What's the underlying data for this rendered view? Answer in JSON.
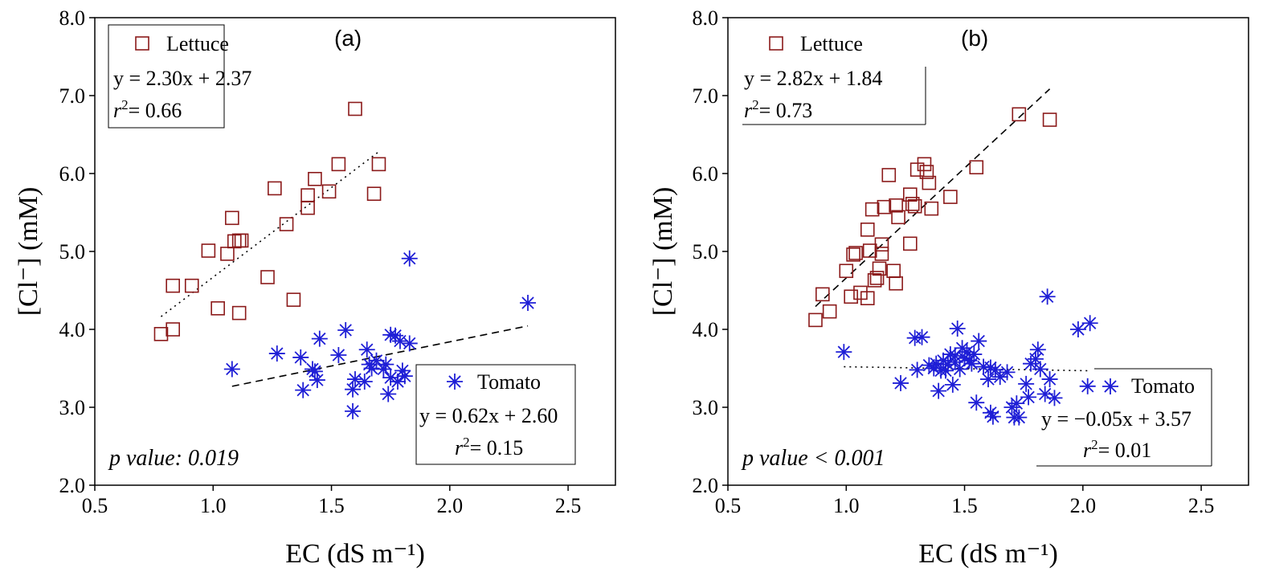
{
  "colors": {
    "lettuce": "#8b1a1a",
    "tomato": "#1f1fd6",
    "axis": "#000000"
  },
  "chart_data": [
    {
      "type": "scatter",
      "panel_label": "(a)",
      "xlabel": "EC (dS m⁻¹)",
      "ylabel": "[Cl⁻] (mM)",
      "xlim": [
        0.5,
        2.7
      ],
      "ylim": [
        2.0,
        8.0
      ],
      "x_ticks": [
        0.5,
        1.0,
        1.5,
        2.0,
        2.5
      ],
      "x_tick_labels": [
        "0.5",
        "1.0",
        "1.5",
        "2.0",
        "2.5"
      ],
      "y_ticks": [
        2.0,
        3.0,
        4.0,
        5.0,
        6.0,
        7.0,
        8.0
      ],
      "y_tick_labels": [
        "2.0",
        "3.0",
        "4.0",
        "5.0",
        "6.0",
        "7.0",
        "8.0"
      ],
      "p_value": "p value: 0.019",
      "series": [
        {
          "name": "Lettuce",
          "marker": "square",
          "equation": "y = 2.30x + 2.37",
          "r2_value": "= 0.66",
          "fit": {
            "slope": 2.3,
            "intercept": 2.37,
            "x": [
              0.78,
              1.7
            ],
            "style": "dotted"
          },
          "points": [
            [
              0.78,
              3.94
            ],
            [
              0.83,
              4.0
            ],
            [
              0.83,
              4.56
            ],
            [
              0.91,
              4.56
            ],
            [
              0.98,
              5.01
            ],
            [
              1.02,
              4.27
            ],
            [
              1.06,
              4.97
            ],
            [
              1.08,
              5.43
            ],
            [
              1.09,
              5.13
            ],
            [
              1.11,
              4.21
            ],
            [
              1.11,
              5.14
            ],
            [
              1.12,
              5.14
            ],
            [
              1.23,
              4.67
            ],
            [
              1.26,
              5.81
            ],
            [
              1.31,
              5.35
            ],
            [
              1.34,
              4.38
            ],
            [
              1.4,
              5.56
            ],
            [
              1.4,
              5.72
            ],
            [
              1.43,
              5.93
            ],
            [
              1.49,
              5.77
            ],
            [
              1.53,
              6.12
            ],
            [
              1.6,
              6.83
            ],
            [
              1.68,
              5.74
            ],
            [
              1.7,
              6.12
            ]
          ]
        },
        {
          "name": "Tomato",
          "marker": "asterisk",
          "equation": "y = 0.62x + 2.60",
          "r2_value": "= 0.15",
          "fit": {
            "slope": 0.62,
            "intercept": 2.6,
            "x": [
              1.08,
              2.33
            ],
            "style": "dashed"
          },
          "points": [
            [
              1.08,
              3.49
            ],
            [
              1.27,
              3.69
            ],
            [
              1.37,
              3.64
            ],
            [
              1.38,
              3.22
            ],
            [
              1.42,
              3.49
            ],
            [
              1.43,
              3.46
            ],
            [
              1.44,
              3.35
            ],
            [
              1.45,
              3.88
            ],
            [
              1.53,
              3.67
            ],
            [
              1.56,
              3.99
            ],
            [
              1.59,
              2.95
            ],
            [
              1.59,
              3.23
            ],
            [
              1.6,
              3.36
            ],
            [
              1.64,
              3.33
            ],
            [
              1.65,
              3.74
            ],
            [
              1.66,
              3.55
            ],
            [
              1.67,
              3.5
            ],
            [
              1.69,
              3.6
            ],
            [
              1.72,
              3.49
            ],
            [
              1.73,
              3.55
            ],
            [
              1.74,
              3.17
            ],
            [
              1.75,
              3.93
            ],
            [
              1.75,
              3.38
            ],
            [
              1.77,
              3.92
            ],
            [
              1.78,
              3.33
            ],
            [
              1.79,
              3.85
            ],
            [
              1.8,
              3.47
            ],
            [
              1.81,
              3.4
            ],
            [
              1.83,
              3.82
            ],
            [
              1.83,
              4.91
            ],
            [
              2.33,
              4.34
            ]
          ]
        }
      ]
    },
    {
      "type": "scatter",
      "panel_label": "(b)",
      "xlabel": "EC (dS m⁻¹)",
      "ylabel": "[Cl⁻] (mM)",
      "xlim": [
        0.5,
        2.7
      ],
      "ylim": [
        2.0,
        8.0
      ],
      "x_ticks": [
        0.5,
        1.0,
        1.5,
        2.0,
        2.5
      ],
      "x_tick_labels": [
        "0.5",
        "1.0",
        "1.5",
        "2.0",
        "2.5"
      ],
      "y_ticks": [
        2.0,
        3.0,
        4.0,
        5.0,
        6.0,
        7.0,
        8.0
      ],
      "y_tick_labels": [
        "2.0",
        "3.0",
        "4.0",
        "5.0",
        "6.0",
        "7.0",
        "8.0"
      ],
      "p_value": "p value < 0.001",
      "series": [
        {
          "name": "Lettuce",
          "marker": "square",
          "equation": "y = 2.82x + 1.84",
          "r2_value": "= 0.73",
          "fit": {
            "slope": 2.82,
            "intercept": 1.84,
            "x": [
              0.87,
              1.86
            ],
            "style": "dashed"
          },
          "points": [
            [
              0.87,
              4.12
            ],
            [
              0.9,
              4.45
            ],
            [
              0.93,
              4.23
            ],
            [
              1.0,
              4.75
            ],
            [
              1.02,
              4.42
            ],
            [
              1.03,
              4.96
            ],
            [
              1.04,
              4.98
            ],
            [
              1.06,
              4.47
            ],
            [
              1.09,
              5.28
            ],
            [
              1.09,
              4.4
            ],
            [
              1.1,
              5.01
            ],
            [
              1.11,
              5.54
            ],
            [
              1.12,
              4.63
            ],
            [
              1.13,
              4.66
            ],
            [
              1.14,
              4.78
            ],
            [
              1.15,
              5.09
            ],
            [
              1.15,
              4.97
            ],
            [
              1.16,
              5.57
            ],
            [
              1.18,
              5.98
            ],
            [
              1.2,
              4.75
            ],
            [
              1.21,
              5.59
            ],
            [
              1.22,
              5.44
            ],
            [
              1.21,
              4.59
            ],
            [
              1.27,
              5.73
            ],
            [
              1.28,
              5.61
            ],
            [
              1.27,
              5.1
            ],
            [
              1.29,
              5.58
            ],
            [
              1.3,
              6.05
            ],
            [
              1.33,
              6.12
            ],
            [
              1.34,
              6.02
            ],
            [
              1.35,
              5.88
            ],
            [
              1.36,
              5.55
            ],
            [
              1.44,
              5.7
            ],
            [
              1.55,
              6.08
            ],
            [
              1.73,
              6.76
            ],
            [
              1.86,
              6.69
            ]
          ]
        },
        {
          "name": "Tomato",
          "marker": "asterisk",
          "equation": "y = −0.05x + 3.57",
          "r2_value": "= 0.01",
          "fit": {
            "slope": -0.05,
            "intercept": 3.57,
            "x": [
              0.99,
              2.03
            ],
            "style": "dotted"
          },
          "points": [
            [
              0.99,
              3.71
            ],
            [
              1.23,
              3.31
            ],
            [
              1.29,
              3.89
            ],
            [
              1.3,
              3.48
            ],
            [
              1.32,
              3.9
            ],
            [
              1.35,
              3.54
            ],
            [
              1.37,
              3.5
            ],
            [
              1.38,
              3.56
            ],
            [
              1.39,
              3.21
            ],
            [
              1.4,
              3.47
            ],
            [
              1.41,
              3.6
            ],
            [
              1.42,
              3.47
            ],
            [
              1.43,
              3.55
            ],
            [
              1.44,
              3.68
            ],
            [
              1.45,
              3.29
            ],
            [
              1.46,
              3.66
            ],
            [
              1.46,
              3.58
            ],
            [
              1.47,
              4.01
            ],
            [
              1.48,
              3.49
            ],
            [
              1.49,
              3.76
            ],
            [
              1.5,
              3.63
            ],
            [
              1.51,
              3.71
            ],
            [
              1.52,
              3.6
            ],
            [
              1.53,
              3.56
            ],
            [
              1.54,
              3.68
            ],
            [
              1.55,
              3.06
            ],
            [
              1.56,
              3.85
            ],
            [
              1.58,
              3.52
            ],
            [
              1.6,
              3.36
            ],
            [
              1.61,
              3.51
            ],
            [
              1.61,
              2.93
            ],
            [
              1.62,
              2.88
            ],
            [
              1.63,
              3.48
            ],
            [
              1.65,
              3.39
            ],
            [
              1.68,
              3.45
            ],
            [
              1.7,
              3.0
            ],
            [
              1.71,
              2.87
            ],
            [
              1.72,
              3.05
            ],
            [
              1.73,
              2.87
            ],
            [
              1.76,
              3.3
            ],
            [
              1.77,
              3.13
            ],
            [
              1.78,
              3.56
            ],
            [
              1.8,
              3.62
            ],
            [
              1.81,
              3.74
            ],
            [
              1.82,
              3.49
            ],
            [
              1.84,
              3.17
            ],
            [
              1.85,
              4.42
            ],
            [
              1.86,
              3.36
            ],
            [
              1.88,
              3.12
            ],
            [
              1.98,
              4.0
            ],
            [
              2.02,
              3.27
            ],
            [
              2.03,
              4.08
            ]
          ]
        }
      ]
    }
  ]
}
